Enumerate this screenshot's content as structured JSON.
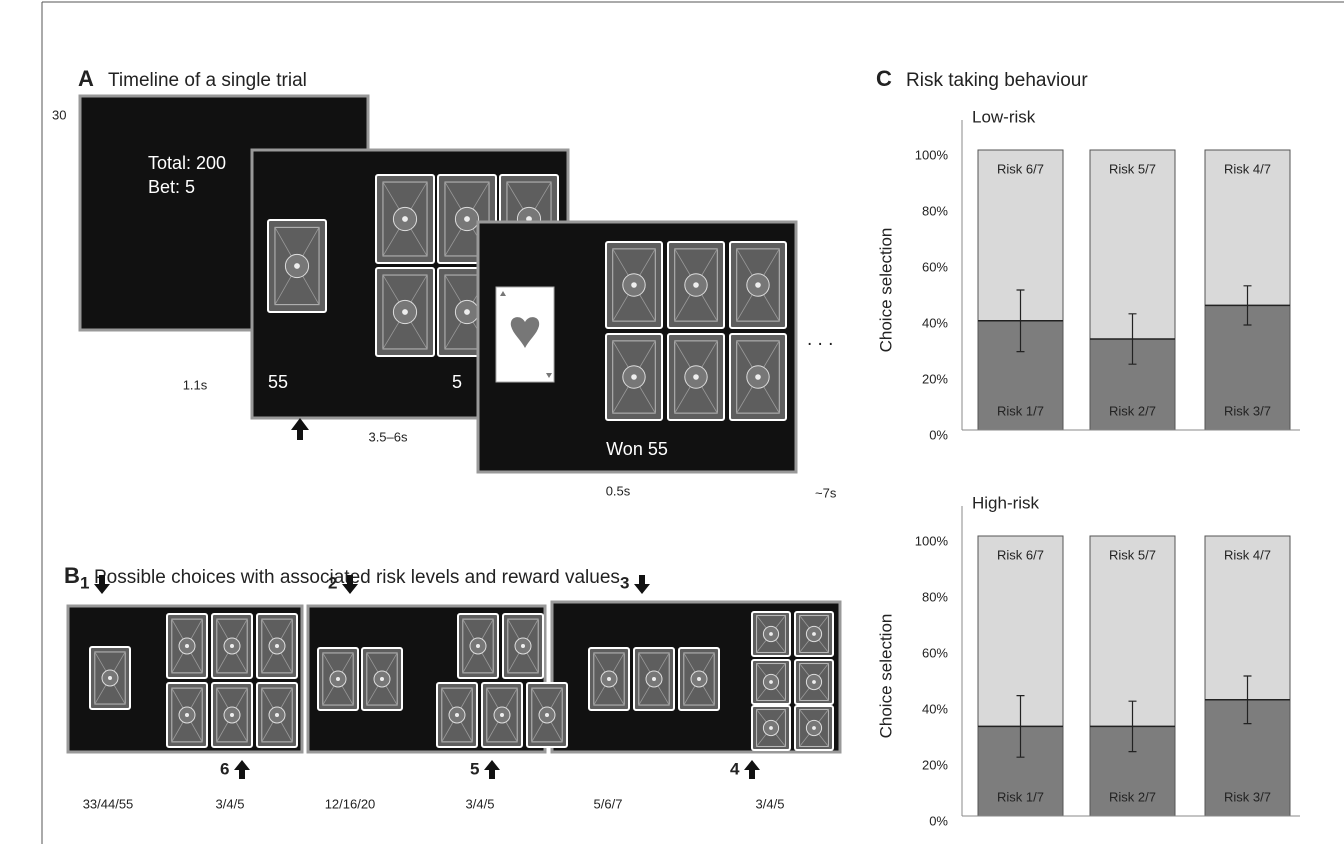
{
  "panel_a": {
    "letter": "A",
    "title": "Timeline of a single trial",
    "stray_label": "30",
    "screen1": {
      "total": "Total: 200",
      "bet": "Bet: 5",
      "duration": "1.1s"
    },
    "screen2": {
      "left_value": "55",
      "right_value": "5",
      "duration": "3.5–6s"
    },
    "screen3": {
      "result": "Won 55",
      "duration": "0.5s"
    },
    "total_duration": "~7s",
    "continuation": ". . ."
  },
  "panel_b": {
    "letter": "B",
    "title": "Possible choices with associated risk levels and reward values",
    "options": [
      {
        "top_choice": "1",
        "bottom_choice": "6",
        "left_rewards": "33/44/55",
        "right_rewards": "3/4/5"
      },
      {
        "top_choice": "2",
        "bottom_choice": "5",
        "left_rewards": "12/16/20",
        "right_rewards": "3/4/5"
      },
      {
        "top_choice": "3",
        "bottom_choice": "4",
        "left_rewards": "5/6/7",
        "right_rewards": "3/4/5"
      }
    ]
  },
  "panel_c": {
    "letter": "C",
    "title": "Risk taking behaviour"
  },
  "chart_data": [
    {
      "type": "stacked_bar",
      "title": "Low-risk",
      "y_label": "Choice selection",
      "ylim": [
        0,
        100
      ],
      "yticks": [
        {
          "value": 0,
          "label": "0%"
        },
        {
          "value": 20,
          "label": "20%"
        },
        {
          "value": 40,
          "label": "40%"
        },
        {
          "value": 60,
          "label": "60%"
        },
        {
          "value": 80,
          "label": "80%"
        },
        {
          "value": 100,
          "label": "100%"
        }
      ],
      "series": [
        {
          "segment_labels": [
            "Risk 1/7",
            "Risk 2/7",
            "Risk 3/7"
          ],
          "color": "#7d7d7d",
          "values": [
            39,
            32.5,
            44.5
          ],
          "errors": [
            11,
            9,
            7
          ]
        },
        {
          "segment_labels": [
            "Risk 6/7",
            "Risk 5/7",
            "Risk 4/7"
          ],
          "color": "#d9d9d9",
          "values": [
            61,
            67.5,
            55.5
          ]
        }
      ]
    },
    {
      "type": "stacked_bar",
      "title": "High-risk",
      "y_label": "Choice selection",
      "ylim": [
        0,
        100
      ],
      "yticks": [
        {
          "value": 0,
          "label": "0%"
        },
        {
          "value": 20,
          "label": "20%"
        },
        {
          "value": 40,
          "label": "40%"
        },
        {
          "value": 60,
          "label": "60%"
        },
        {
          "value": 80,
          "label": "80%"
        },
        {
          "value": 100,
          "label": "100%"
        }
      ],
      "series": [
        {
          "segment_labels": [
            "Risk 1/7",
            "Risk 2/7",
            "Risk 3/7"
          ],
          "color": "#7d7d7d",
          "values": [
            32,
            32,
            41.5
          ],
          "errors": [
            11,
            9,
            8.5
          ]
        },
        {
          "segment_labels": [
            "Risk 6/7",
            "Risk 5/7",
            "Risk 4/7"
          ],
          "color": "#d9d9d9",
          "values": [
            68,
            68,
            58.5
          ]
        }
      ]
    }
  ]
}
